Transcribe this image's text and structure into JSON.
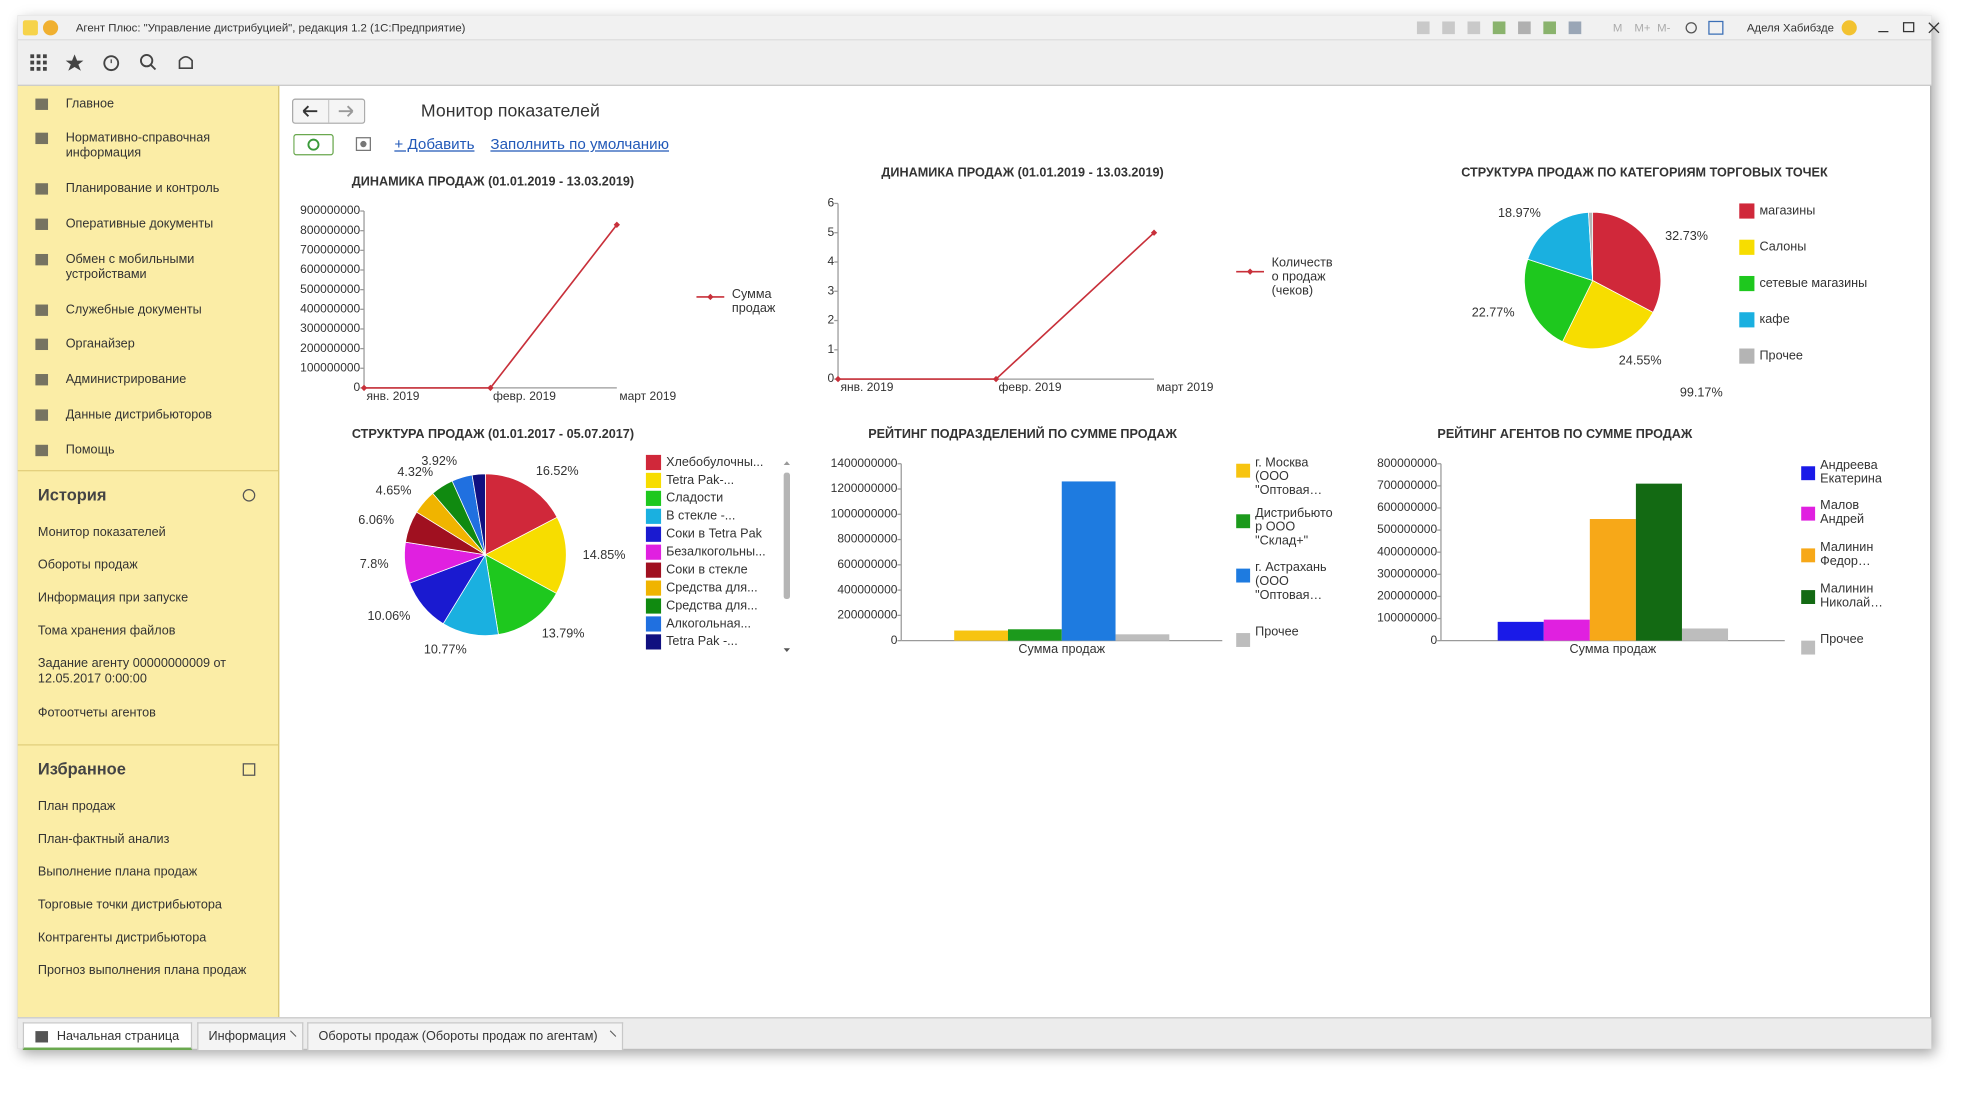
{
  "window": {
    "title": "Агент Плюс: \"Управление дистрибуцией\", редакция 1.2  (1С:Предприятие)",
    "memory_buttons": [
      "M",
      "M+",
      "M-"
    ],
    "user": "Аделя Хабибзде"
  },
  "sections": [
    "Главное",
    "Нормативно-справочная информация",
    "Планирование и контроль",
    "Оперативные документы",
    "Обмен с мобильными устройствами",
    "Служебные документы",
    "Органайзер",
    "Администрирование",
    "Данные дистрибьюторов",
    "Помощь"
  ],
  "history": {
    "title": "История",
    "items": [
      "Монитор показателей",
      "Обороты продаж",
      "Информация при запуске",
      "Тома хранения файлов",
      "Задание агенту 00000000009 от 12.05.2017 0:00:00",
      "Фотоотчеты агентов"
    ]
  },
  "favorites": {
    "title": "Избранное",
    "items": [
      "План продаж",
      "План-фактный анализ",
      "Выполнение плана продаж",
      "Торговые точки дистрибьютора",
      "Контрагенты дистрибьютора",
      "Прогноз выполнения плана продаж"
    ]
  },
  "form": {
    "title": "Монитор показателей",
    "add": "+ Добавить",
    "fill_default": "Заполнить по умолчанию"
  },
  "chart_data": [
    {
      "type": "line",
      "title": "ДИНАМИКА ПРОДАЖ (01.01.2019 - 13.03.2019)",
      "categories": [
        "янв. 2019",
        "февр. 2019",
        "март 2019"
      ],
      "series": [
        {
          "name": "Сумма продаж",
          "color": "#c8303a",
          "values": [
            0,
            0,
            830000000
          ]
        }
      ],
      "ylim": [
        0,
        900000000
      ],
      "yticks": [
        0,
        100000000,
        200000000,
        300000000,
        400000000,
        500000000,
        600000000,
        700000000,
        800000000,
        900000000
      ],
      "legend": "right"
    },
    {
      "type": "line",
      "title": "ДИНАМИКА ПРОДАЖ (01.01.2019 - 13.03.2019)",
      "categories": [
        "янв. 2019",
        "февр. 2019",
        "март 2019"
      ],
      "series": [
        {
          "name": "Количество продаж (чеков)",
          "color": "#c8303a",
          "values": [
            0,
            0,
            5
          ]
        }
      ],
      "ylim": [
        0,
        6
      ],
      "yticks": [
        0,
        1,
        2,
        3,
        4,
        5,
        6
      ],
      "legend": "right"
    },
    {
      "type": "pie",
      "title": "СТРУКТУРА ПРОДАЖ ПО КАТЕГОРИЯМ ТОРГОВЫХ ТОЧЕК",
      "categories": [
        "магазины",
        "Салоны",
        "сетевые магазины",
        "кафе",
        "Прочее"
      ],
      "values": [
        32.73,
        24.55,
        22.77,
        18.97,
        0.98
      ],
      "value_labels": [
        "32.73%",
        "24.55%",
        "22.77%",
        "18.97%",
        null
      ],
      "colors": [
        "#d0283a",
        "#f7dd00",
        "#1ec81e",
        "#1ab0e0",
        "#b4b4b4"
      ],
      "annotations": [
        "99.17%"
      ],
      "legend": "right"
    },
    {
      "type": "pie",
      "title": "СТРУКТУРА ПРОДАЖ (01.01.2017 - 05.07.2017)",
      "categories": [
        "Хлебобулочны...",
        "Tetra Pak-...",
        "Сладости",
        "В стекле -...",
        "Соки в Tetra Pak",
        "Безалкогольны...",
        "Соки в стекле",
        "Средства для...",
        "Средства для...",
        "Алкогольная...",
        "Tetra Pak -..."
      ],
      "values": [
        16.52,
        14.85,
        13.79,
        10.77,
        10.06,
        7.8,
        6.06,
        4.65,
        4.32,
        3.92,
        2.5
      ],
      "value_labels": [
        "16.52%",
        "14.85%",
        "13.79%",
        "10.77%",
        "10.06%",
        "7.8%",
        "6.06%",
        "4.65%",
        "4.32%",
        "3.92%",
        null
      ],
      "colors": [
        "#d0283a",
        "#f7dd00",
        "#1ec81e",
        "#1ab0e0",
        "#1a1ad0",
        "#e020e0",
        "#a01020",
        "#f0b400",
        "#108a10",
        "#2070e0",
        "#101080"
      ],
      "legend": "right"
    },
    {
      "type": "bar",
      "title": "РЕЙТИНГ ПОДРАЗДЕЛЕНИЙ ПО СУММЕ ПРОДАЖ",
      "categories": [
        "Сумма продаж"
      ],
      "series": [
        {
          "name": "г. Москва (ООО \"Оптовая…",
          "color": "#f7c410",
          "values": [
            80000000
          ]
        },
        {
          "name": "Дистрибьютор ООО \"Склад+\"",
          "color": "#1c9a1c",
          "values": [
            90000000
          ]
        },
        {
          "name": "г. Астрахань (ООО \"Оптовая…",
          "color": "#1e7be0",
          "values": [
            1260000000
          ]
        },
        {
          "name": "Прочее",
          "color": "#bdbdbd",
          "values": [
            50000000
          ]
        }
      ],
      "ylim": [
        0,
        1400000000
      ],
      "yticks": [
        0,
        200000000,
        400000000,
        600000000,
        800000000,
        1000000000,
        1200000000,
        1400000000
      ],
      "legend": "right"
    },
    {
      "type": "bar",
      "title": "РЕЙТИНГ АГЕНТОВ ПО СУММЕ ПРОДАЖ",
      "categories": [
        "Сумма продаж"
      ],
      "series": [
        {
          "name": "Андреева Екатерина",
          "color": "#1a1ae8",
          "values": [
            85000000
          ]
        },
        {
          "name": "Малов Андрей",
          "color": "#e020e0",
          "values": [
            95000000
          ]
        },
        {
          "name": "Малинин Федор…",
          "color": "#f7a818",
          "values": [
            550000000
          ]
        },
        {
          "name": "Малинин Николай…",
          "color": "#136a13",
          "values": [
            710000000
          ]
        },
        {
          "name": "Прочее",
          "color": "#bdbdbd",
          "values": [
            55000000
          ]
        }
      ],
      "ylim": [
        0,
        800000000
      ],
      "yticks": [
        0,
        100000000,
        200000000,
        300000000,
        400000000,
        500000000,
        600000000,
        700000000,
        800000000
      ],
      "legend": "right"
    }
  ],
  "tabs": [
    "Начальная страница",
    "Информация",
    "Обороты продаж (Обороты продаж по агентам)"
  ]
}
